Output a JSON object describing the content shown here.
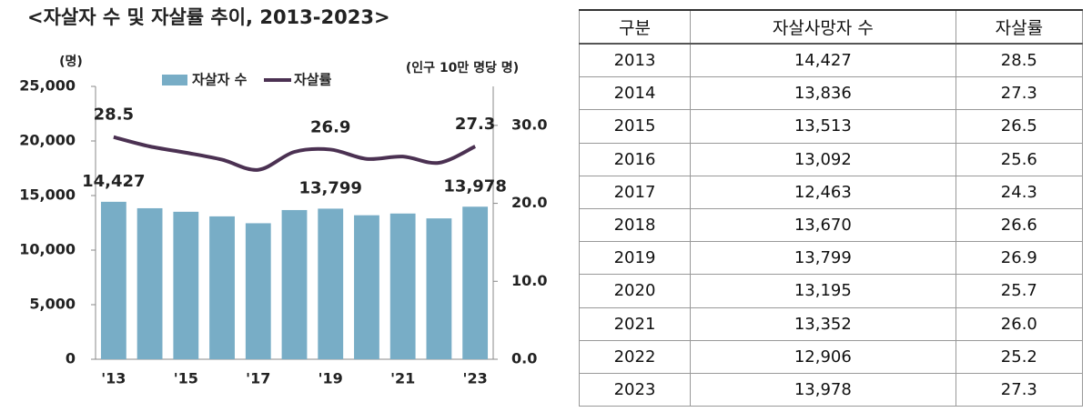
{
  "chart_data": {
    "type": "bar",
    "title": "<자살자 수 및 자살률 추이, 2013-2023>",
    "ylabel": "(명)",
    "y2label": "(인구 10만 명당 명)",
    "categories": [
      "'13",
      null,
      "'15",
      null,
      "'17",
      null,
      "'19",
      null,
      "'21",
      null,
      "'23"
    ],
    "series": [
      {
        "name": "자살자 수",
        "color": "#78adc6",
        "values": [
          14427,
          13836,
          13513,
          13092,
          12463,
          13670,
          13799,
          13195,
          13352,
          12906,
          13978
        ],
        "value_labels": [
          "14,427",
          null,
          null,
          null,
          null,
          null,
          "13,799",
          null,
          null,
          null,
          "13,978"
        ]
      },
      {
        "name": "자살률",
        "type": "line",
        "axis": "y2",
        "color": "#4b3152",
        "values": [
          28.5,
          27.3,
          26.5,
          25.6,
          24.3,
          26.6,
          26.9,
          25.7,
          26.0,
          25.2,
          27.3
        ],
        "value_labels": [
          "28.5",
          null,
          null,
          null,
          null,
          null,
          "26.9",
          null,
          null,
          null,
          "27.3"
        ]
      }
    ],
    "ylim": [
      0,
      25000
    ],
    "yticks": [
      0,
      {
        "value": 5000,
        "label": "5,000"
      },
      {
        "value": 10000,
        "label": "10,000"
      },
      {
        "value": 15000,
        "label": "15,000"
      },
      {
        "value": 20000,
        "label": "20,000"
      },
      {
        "value": 25000,
        "label": "25,000"
      }
    ],
    "y2lim": [
      0,
      35
    ],
    "y2ticks": [
      {
        "value": 0,
        "label": "0.0"
      },
      {
        "value": 10,
        "label": "10.0"
      },
      {
        "value": 20,
        "label": "20.0"
      },
      {
        "value": 30,
        "label": "30.0"
      }
    ],
    "grid": false,
    "legend": "top"
  },
  "table": {
    "header": [
      "구분",
      "자살사망자 수",
      "자살률"
    ],
    "rows": [
      [
        "2013",
        "14,427",
        "28.5"
      ],
      [
        "2014",
        "13,836",
        "27.3"
      ],
      [
        "2015",
        "13,513",
        "26.5"
      ],
      [
        "2016",
        "13,092",
        "25.6"
      ],
      [
        "2017",
        "12,463",
        "24.3"
      ],
      [
        "2018",
        "13,670",
        "26.6"
      ],
      [
        "2019",
        "13,799",
        "26.9"
      ],
      [
        "2020",
        "13,195",
        "25.7"
      ],
      [
        "2021",
        "13,352",
        "26.0"
      ],
      [
        "2022",
        "12,906",
        "25.2"
      ],
      [
        "2023",
        "13,978",
        "27.3"
      ]
    ]
  }
}
